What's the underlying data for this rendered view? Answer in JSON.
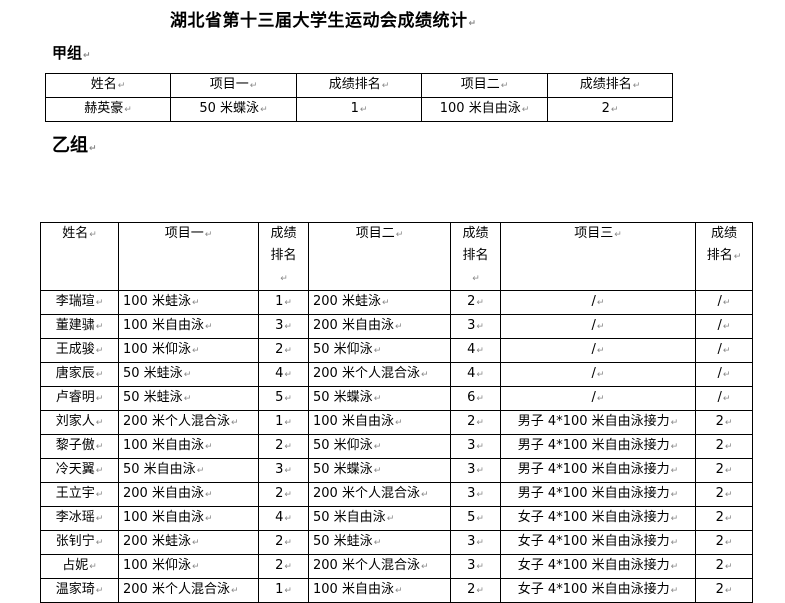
{
  "title": "湖北省第十三届大学生运动会成绩统计",
  "group_a": {
    "label": "甲组",
    "headers": [
      "姓名",
      "项目一",
      "成绩排名",
      "项目二",
      "成绩排名"
    ],
    "rows": [
      [
        "赫英豪",
        "50 米蝶泳",
        "1",
        "100 米自由泳",
        "2"
      ]
    ]
  },
  "group_b": {
    "label": "乙组",
    "headers": [
      "姓名",
      "项目一",
      "成绩排名",
      "项目二",
      "成绩排名",
      "项目三",
      "成绩排名"
    ],
    "rows": [
      [
        "李瑞瑄",
        "100 米蛙泳",
        "1",
        "200 米蛙泳",
        "2",
        "/",
        "/"
      ],
      [
        "董建骕",
        "100 米自由泳",
        "3",
        "200 米自由泳",
        "3",
        "/",
        "/"
      ],
      [
        "王成骏",
        "100 米仰泳",
        "2",
        "50 米仰泳",
        "4",
        "/",
        "/"
      ],
      [
        "唐家辰",
        "50 米蛙泳",
        "4",
        "200 米个人混合泳",
        "4",
        "/",
        "/"
      ],
      [
        "卢睿明",
        "50 米蛙泳",
        "5",
        "50 米蝶泳",
        "6",
        "/",
        "/"
      ],
      [
        "刘家人",
        "200 米个人混合泳",
        "1",
        "100 米自由泳",
        "2",
        "男子 4*100 米自由泳接力",
        "2"
      ],
      [
        "黎子傲",
        "100 米自由泳",
        "2",
        "50 米仰泳",
        "3",
        "男子 4*100 米自由泳接力",
        "2"
      ],
      [
        "冷天翼",
        "50 米自由泳",
        "3",
        "50 米蝶泳",
        "3",
        "男子 4*100 米自由泳接力",
        "2"
      ],
      [
        "王立宇",
        "200 米自由泳",
        "2",
        "200 米个人混合泳",
        "3",
        "男子 4*100 米自由泳接力",
        "2"
      ],
      [
        "李冰瑶",
        "100 米自由泳",
        "4",
        "50 米自由泳",
        "5",
        "女子 4*100 米自由泳接力",
        "2"
      ],
      [
        "张钊宁",
        "200 米蛙泳",
        "2",
        "50 米蛙泳",
        "3",
        "女子 4*100 米自由泳接力",
        "2"
      ],
      [
        "占妮",
        "100 米仰泳",
        "2",
        "200 米个人混合泳",
        "3",
        "女子 4*100 米自由泳接力",
        "2"
      ],
      [
        "温家琦",
        "200 米个人混合泳",
        "1",
        "100 米自由泳",
        "2",
        "女子 4*100 米自由泳接力",
        "2"
      ]
    ]
  }
}
